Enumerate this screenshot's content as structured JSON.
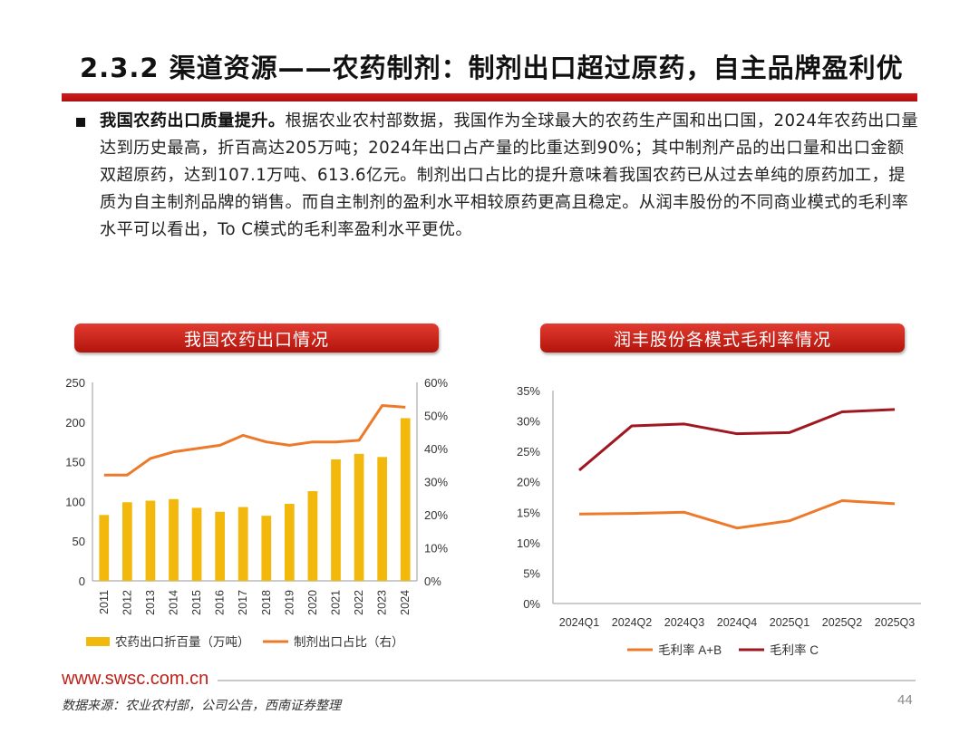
{
  "page_title": "2.3.2 渠道资源——农药制剂：制剂出口超过原药，自主品牌盈利优",
  "paragraph": {
    "lead": "我国农药出口质量提升。",
    "text": "根据农业农村部数据，我国作为全球最大的农药生产国和出口国，2024年农药出口量达到历史最高，折百高达205万吨；2024年出口占产量的比重达到90%；其中制剂产品的出口量和出口金额双超原药，达到107.1万吨、613.6亿元。制剂出口占比的提升意味着我国农药已从过去单纯的原药加工，提质为自主制剂品牌的销售。而自主制剂的盈利水平相较原药更高且稳定。从润丰股份的不同商业模式的毛利率水平可以看出，To C模式的毛利率盈利水平更优。"
  },
  "colors": {
    "accent_red": "#c0201a",
    "bar_yellow": "#f2b90c",
    "line_orange": "#ec7a2a",
    "line_darkred": "#a01722"
  },
  "chart_data": [
    {
      "type": "bar",
      "title": "我国农药出口情况",
      "categories": [
        "2011",
        "2012",
        "2013",
        "2014",
        "2015",
        "2016",
        "2017",
        "2018",
        "2019",
        "2020",
        "2021",
        "2022",
        "2023",
        "2024"
      ],
      "ylim": [
        0,
        250
      ],
      "yticks": [
        "0",
        "50",
        "100",
        "150",
        "200",
        "250"
      ],
      "y2lim": [
        0,
        60
      ],
      "y2ticks": [
        "0%",
        "10%",
        "20%",
        "30%",
        "40%",
        "50%",
        "60%"
      ],
      "series": [
        {
          "name": "农药出口折百量（万吨）",
          "type": "bar",
          "axis": "left",
          "values": [
            83,
            99,
            101,
            103,
            92,
            87,
            93,
            82,
            97,
            113,
            153,
            160,
            156,
            205
          ]
        },
        {
          "name": "制剂出口占比（右）",
          "type": "line",
          "axis": "right",
          "values": [
            32,
            32,
            37,
            39,
            40,
            41,
            44,
            42,
            41,
            42,
            42,
            42.5,
            53,
            52.5
          ]
        }
      ],
      "legend_position": "bottom"
    },
    {
      "type": "line",
      "title": "润丰股份各模式毛利率情况",
      "categories": [
        "2024Q1",
        "2024Q2",
        "2024Q3",
        "2024Q4",
        "2025Q1",
        "2025Q2",
        "2025Q3"
      ],
      "ylim": [
        0,
        35
      ],
      "yticks": [
        "0%",
        "5%",
        "10%",
        "15%",
        "20%",
        "25%",
        "30%",
        "35%"
      ],
      "series": [
        {
          "name": "毛利率 A+B",
          "values": [
            14.7,
            14.8,
            15.0,
            12.4,
            13.6,
            16.9,
            16.4
          ]
        },
        {
          "name": "毛利率 C",
          "values": [
            21.9,
            29.2,
            29.5,
            27.9,
            28.1,
            31.5,
            31.9
          ]
        }
      ],
      "legend_position": "bottom"
    }
  ],
  "footer": {
    "site": "www.swsc.com.cn",
    "source": "数据来源：农业农村部，公司公告，西南证券整理",
    "page": "44"
  }
}
